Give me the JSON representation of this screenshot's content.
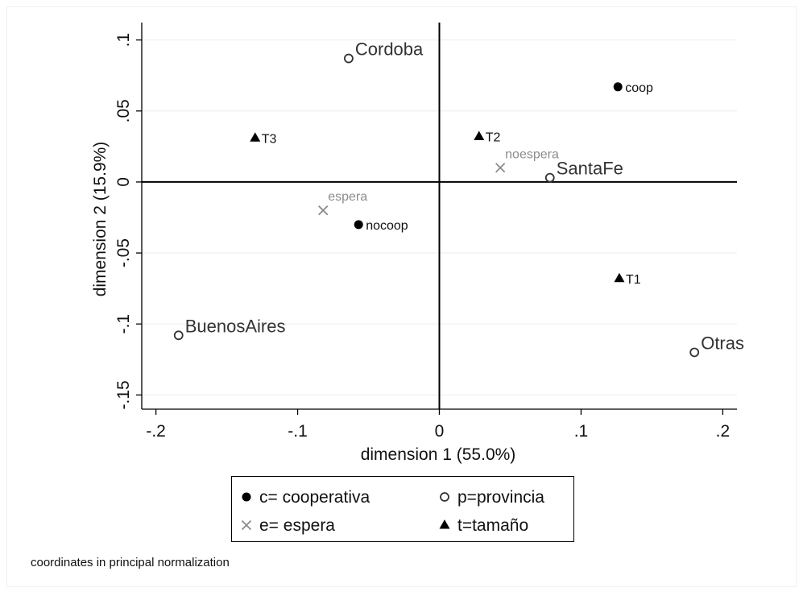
{
  "chart_data": {
    "type": "scatter",
    "title": "",
    "xlabel": "dimension 1 (55.0%)",
    "ylabel": "dimension 2 (15.9%)",
    "xlim": [
      -0.21,
      0.21
    ],
    "ylim": [
      -0.16,
      0.11
    ],
    "x_ticks": [
      {
        "value": -0.2,
        "label": "-.2"
      },
      {
        "value": -0.1,
        "label": "-.1"
      },
      {
        "value": 0,
        "label": "0"
      },
      {
        "value": 0.1,
        "label": ".1"
      },
      {
        "value": 0.2,
        "label": ".2"
      }
    ],
    "y_ticks": [
      {
        "value": 0.1,
        "label": ".1"
      },
      {
        "value": 0.05,
        "label": ".05"
      },
      {
        "value": 0,
        "label": "0"
      },
      {
        "value": -0.05,
        "label": "-.05"
      },
      {
        "value": -0.1,
        "label": "-.1"
      },
      {
        "value": -0.15,
        "label": "-.15"
      }
    ],
    "grid": true,
    "reference_lines": {
      "x": 0,
      "y": 0
    },
    "legend_position": "bottom",
    "series": [
      {
        "name": "c= cooperativa",
        "marker": "filled-circle",
        "color": "#000000",
        "points": [
          {
            "label": "coop",
            "x": 0.126,
            "y": 0.067
          },
          {
            "label": "nocoop",
            "x": -0.057,
            "y": -0.03
          }
        ]
      },
      {
        "name": "p=provincia",
        "marker": "hollow-circle",
        "color": "#333333",
        "points": [
          {
            "label": "Cordoba",
            "x": -0.064,
            "y": 0.087
          },
          {
            "label": "SantaFe",
            "x": 0.078,
            "y": 0.003
          },
          {
            "label": "BuenosAires",
            "x": -0.184,
            "y": -0.108
          },
          {
            "label": "Otras",
            "x": 0.18,
            "y": -0.12
          }
        ]
      },
      {
        "name": "e= espera",
        "marker": "cross",
        "color": "#8c8c8c",
        "points": [
          {
            "label": "noespera",
            "x": 0.043,
            "y": 0.01
          },
          {
            "label": "espera",
            "x": -0.082,
            "y": -0.02
          }
        ]
      },
      {
        "name": "t=tamaño",
        "marker": "filled-triangle",
        "color": "#000000",
        "points": [
          {
            "label": "T3",
            "x": -0.13,
            "y": 0.031
          },
          {
            "label": "T2",
            "x": 0.028,
            "y": 0.032
          },
          {
            "label": "T1",
            "x": 0.127,
            "y": -0.068
          }
        ]
      }
    ],
    "note": "coordinates in principal normalization"
  },
  "colors": {
    "background": "#ffffff",
    "grid": "#eaf2f3",
    "axis": "#000000"
  }
}
